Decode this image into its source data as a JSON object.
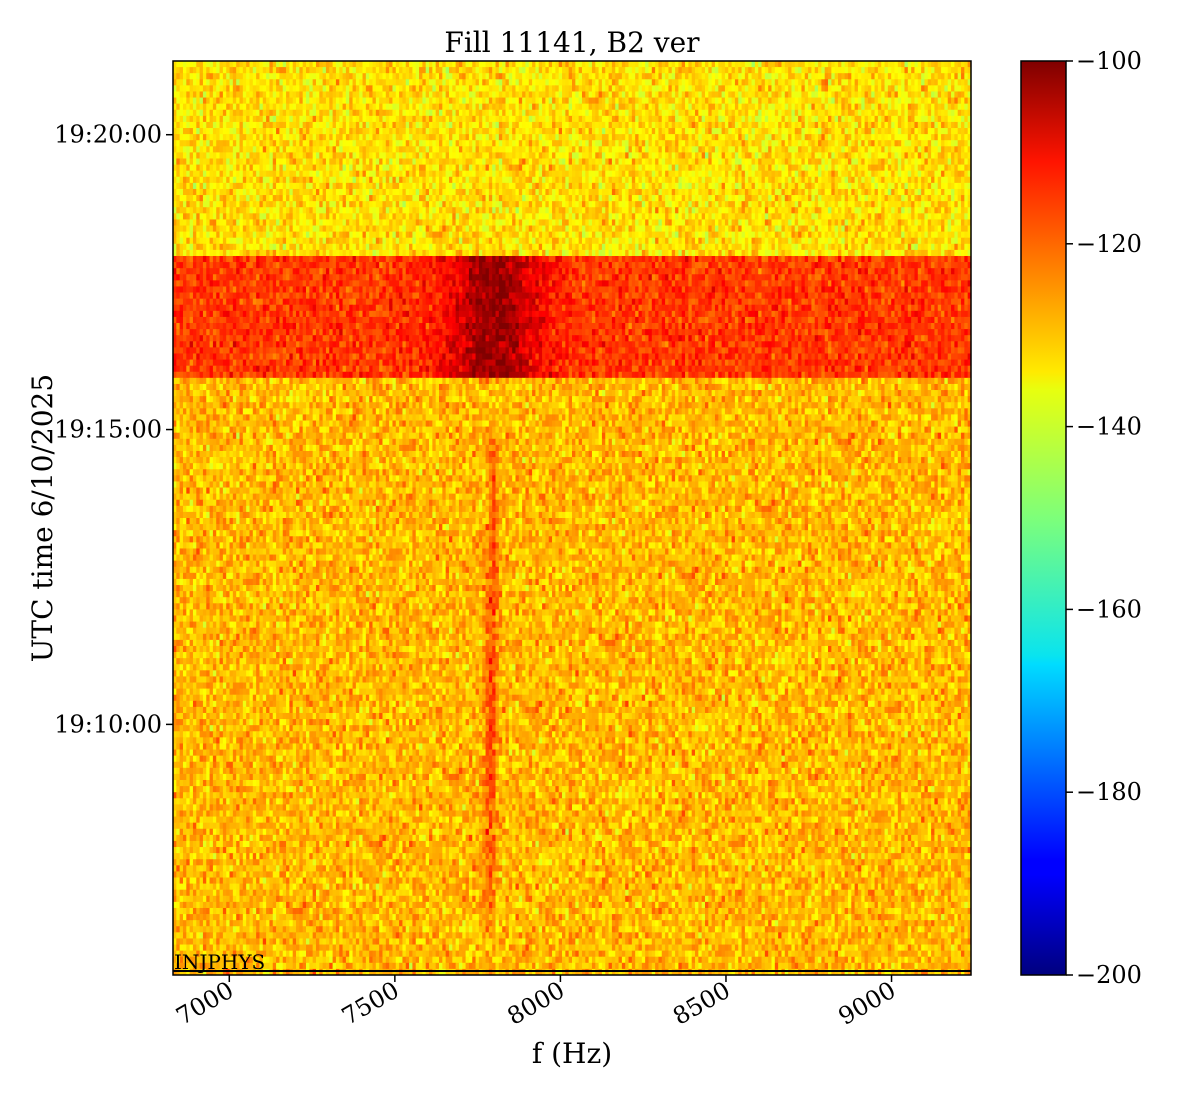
{
  "chart_data": {
    "type": "heatmap",
    "title": "Fill 11141, B2 ver",
    "xlabel": "f (Hz)",
    "ylabel": "UTC time 6/10/2025",
    "x_range": [
      6830,
      9240
    ],
    "y_range": [
      "19:05:45",
      "19:21:15"
    ],
    "x_ticks": [
      7000,
      7500,
      8000,
      8500,
      9000
    ],
    "x_tick_labels": [
      "7000",
      "7500",
      "8000",
      "8500",
      "9000"
    ],
    "y_ticks": [
      "19:10:00",
      "19:15:00",
      "19:20:00"
    ],
    "y_tick_labels": [
      "19:10:00",
      "19:15:00",
      "19:20:00"
    ],
    "colormap": "jet",
    "color_range": [
      -200,
      -100
    ],
    "colorbar_ticks": [
      -100,
      -120,
      -140,
      -160,
      -180,
      -200
    ],
    "colorbar_tick_labels": [
      "−100",
      "−120",
      "−140",
      "−160",
      "−180",
      "−200"
    ],
    "grid": false,
    "annotation": {
      "text": "INJPHYS",
      "time": "19:05:45"
    },
    "features": {
      "background_level": -133,
      "strong_band": {
        "t_start": "19:15:50",
        "t_end": "19:17:55",
        "level": -118,
        "peak_f": 7800,
        "peak_level": -102
      },
      "faint_line": {
        "f": 7790,
        "t_start": "19:06:30",
        "t_end": "19:14:50",
        "level": -118
      }
    }
  }
}
